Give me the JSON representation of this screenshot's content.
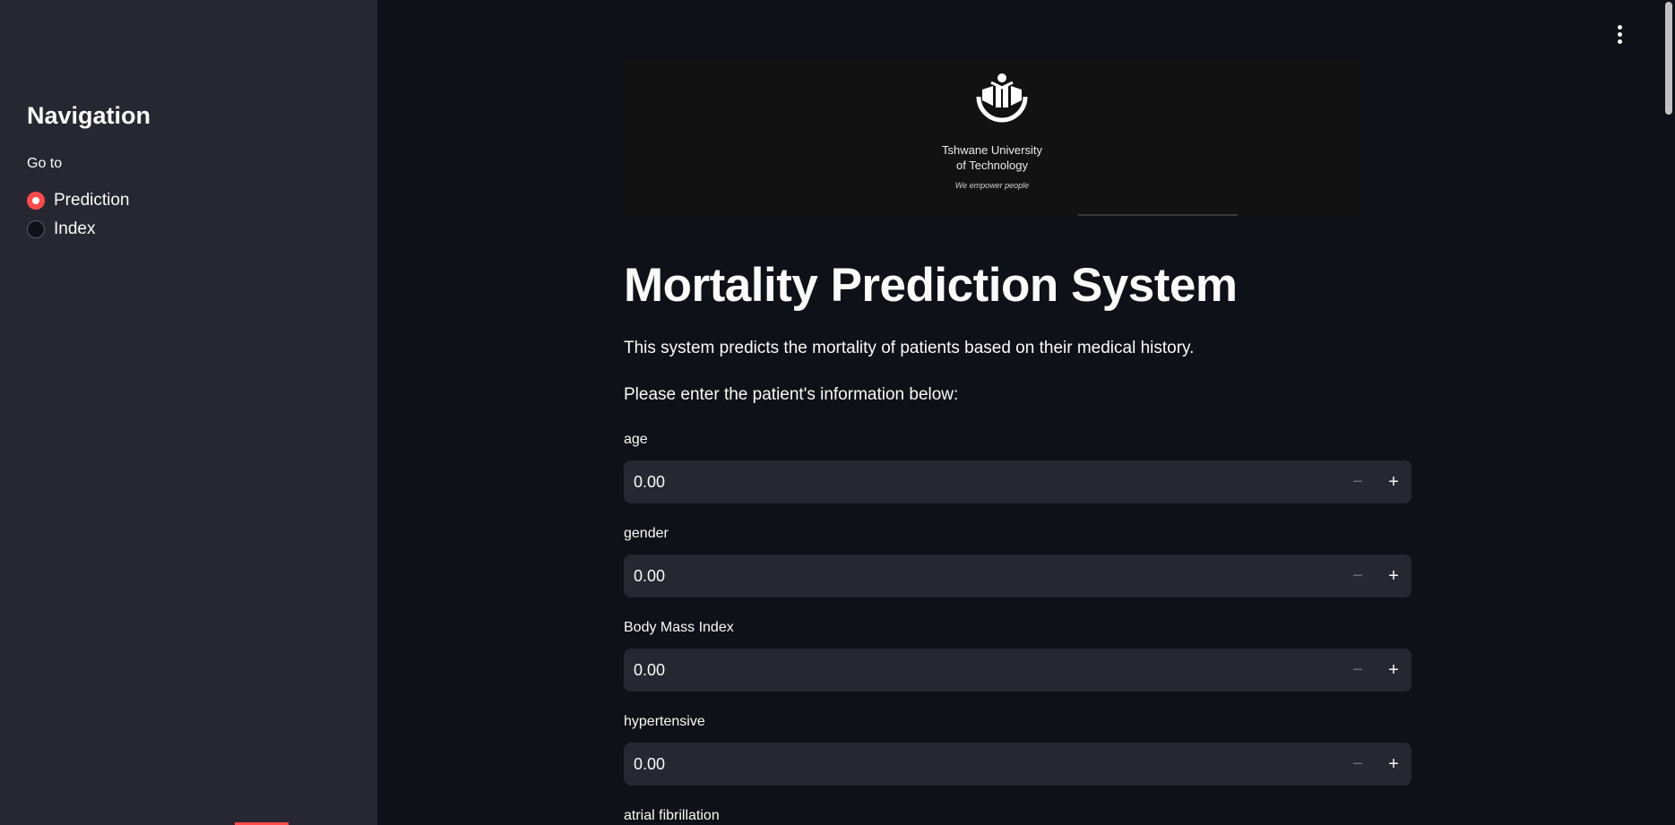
{
  "sidebar": {
    "title": "Navigation",
    "radio_label": "Go to",
    "options": [
      {
        "label": "Prediction",
        "selected": true
      },
      {
        "label": "Index",
        "selected": false
      }
    ]
  },
  "banner": {
    "line1": "Tshwane University",
    "line2": "of Technology",
    "tagline": "We empower people"
  },
  "main": {
    "title": "Mortality Prediction System",
    "description": "This system predicts the mortality of patients based on their medical history.",
    "instruction": "Please enter the patient's information below:",
    "fields": [
      {
        "label": "age",
        "value": "0.00"
      },
      {
        "label": "gender",
        "value": "0.00"
      },
      {
        "label": "Body Mass Index",
        "value": "0.00"
      },
      {
        "label": "hypertensive",
        "value": "0.00"
      },
      {
        "label": "atrial fibrillation",
        "value": ""
      }
    ],
    "minus_symbol": "−",
    "plus_symbol": "+"
  },
  "colors": {
    "accent": "#ff4b4b",
    "background": "#0e1117",
    "sidebar": "#262730",
    "input": "#262730"
  }
}
